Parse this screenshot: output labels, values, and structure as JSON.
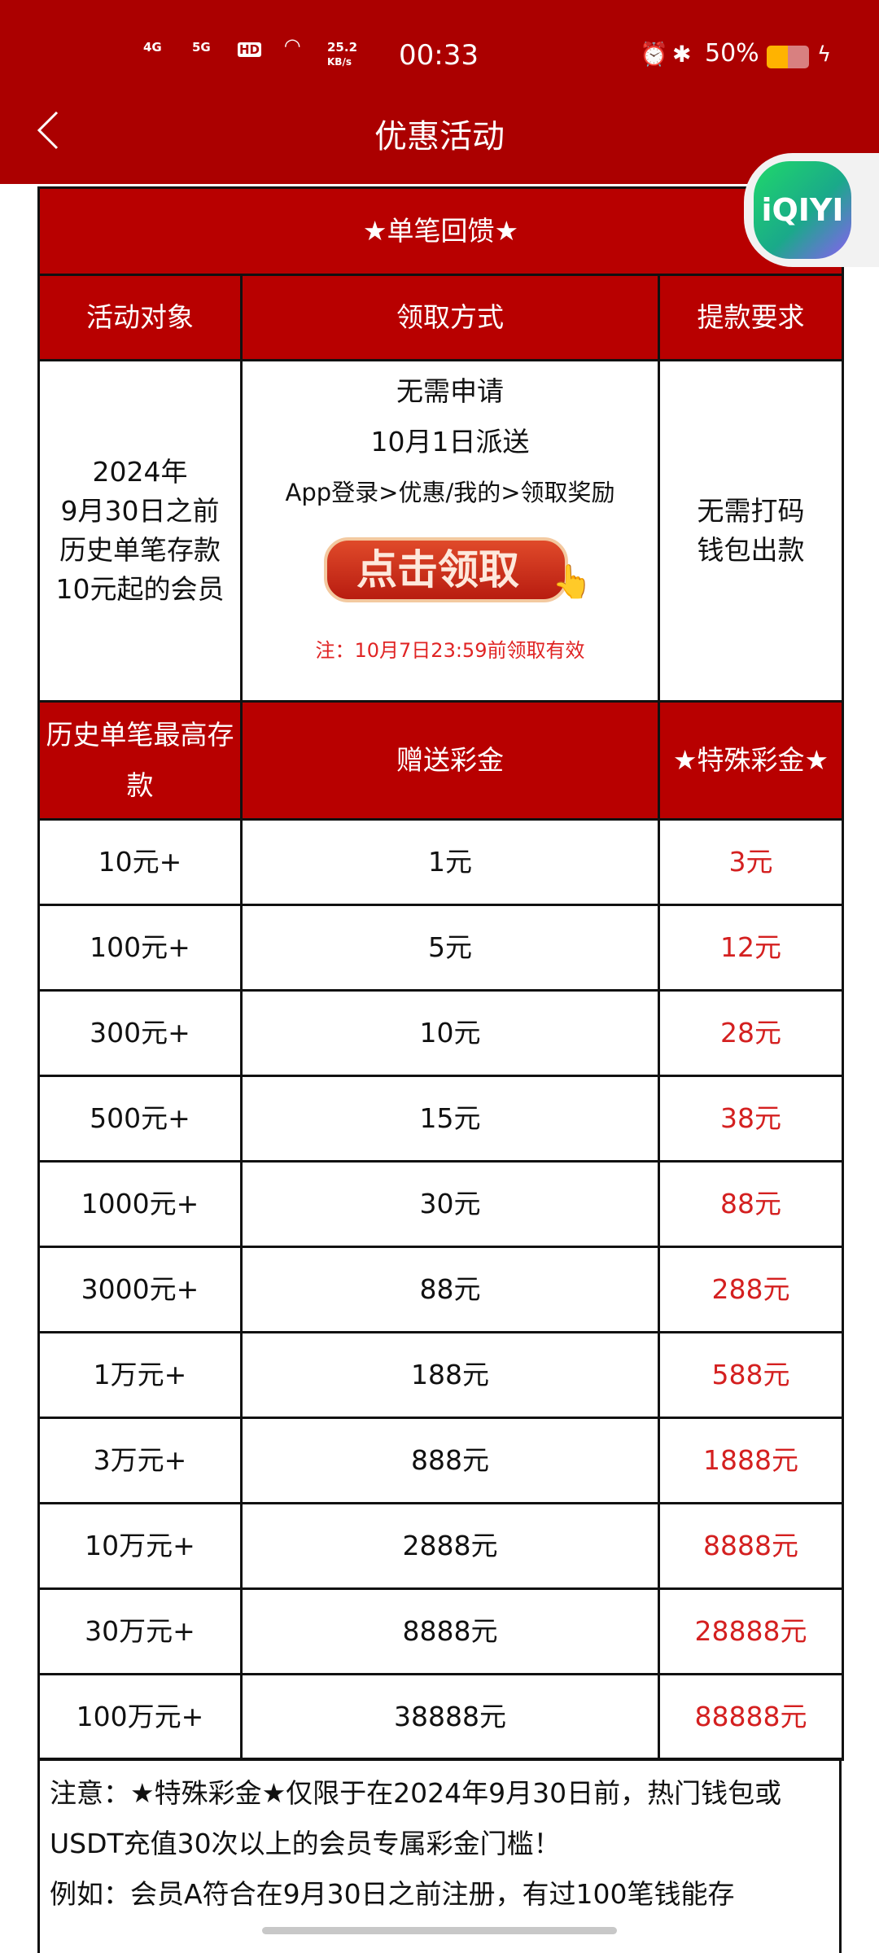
{
  "status_bar": {
    "net1": "4G",
    "net2": "5G",
    "hd": "HD",
    "speed": "25.2",
    "speed_unit": "KB/s",
    "time": "00:33",
    "battery": "50%"
  },
  "header": {
    "title": "优惠活动"
  },
  "floating_app": {
    "label": "iQIYI"
  },
  "table": {
    "title": "★单笔回馈★",
    "headers": [
      "活动对象",
      "领取方式",
      "提款要求"
    ],
    "target_lines": [
      "2024年",
      "9月30日之前",
      "历史单笔存款",
      "10元起的会员"
    ],
    "method_lines": [
      "无需申请",
      "10月1日派送",
      "App登录>优惠/我的>领取奖励"
    ],
    "claim_button": "点击领取",
    "claim_note": "注：10月7日23:59前领取有效",
    "withdraw_lines": [
      "无需打码",
      "钱包出款"
    ],
    "headers2": [
      "历史单笔最高存款",
      "赠送彩金",
      "★特殊彩金★"
    ],
    "rows": [
      [
        "10元+",
        "1元",
        "3元"
      ],
      [
        "100元+",
        "5元",
        "12元"
      ],
      [
        "300元+",
        "10元",
        "28元"
      ],
      [
        "500元+",
        "15元",
        "38元"
      ],
      [
        "1000元+",
        "30元",
        "88元"
      ],
      [
        "3000元+",
        "88元",
        "288元"
      ],
      [
        "1万元+",
        "188元",
        "588元"
      ],
      [
        "3万元+",
        "888元",
        "1888元"
      ],
      [
        "10万元+",
        "2888元",
        "8888元"
      ],
      [
        "30万元+",
        "8888元",
        "28888元"
      ],
      [
        "100万元+",
        "38888元",
        "88888元"
      ]
    ]
  },
  "notes": {
    "line1": "注意：★特殊彩金★仅限于在2024年9月30日前，热门钱包或USDT充值30次以上的会员专属彩金门槛！",
    "line2": "例如：会员A符合在9月30日之前注册，有过100笔钱能存"
  },
  "colors": {
    "header_bg": "#ab0000",
    "table_header_bg": "#b80000",
    "special_text": "#d42020"
  }
}
